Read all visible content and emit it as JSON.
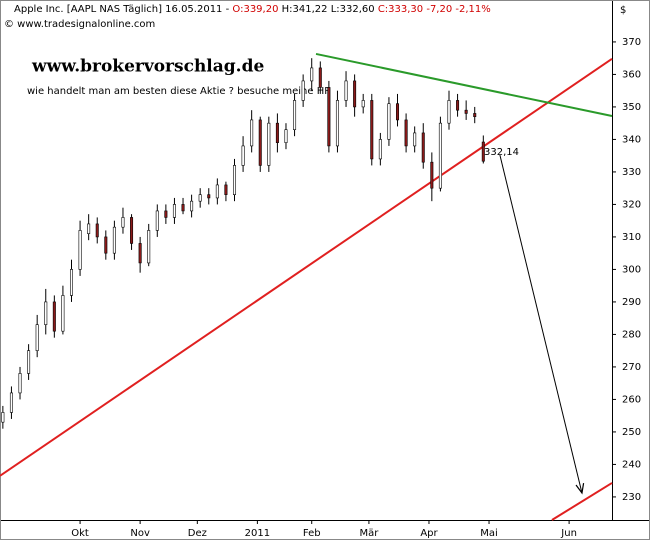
{
  "chart_data": {
    "type": "candlestick",
    "header": {
      "name": "Apple Inc. [AAPL NAS  Täglich] 16.05.2011 - ",
      "open": "O:339,20",
      "highlow": " H:341,22 L:332,60 ",
      "close": "C:333,30 -7,20 -2,11%"
    },
    "source": "© www.tradesignalonline.com",
    "watermark": "www.brokervorschlag.de",
    "subtitle": "wie handelt man am besten diese Aktie  ? besuche meine HP",
    "y_unit": "$",
    "up_color": "#ffffff",
    "down_color": "#8b1a1a",
    "x": [
      1,
      4,
      7,
      10,
      13,
      16,
      19,
      22,
      25,
      28,
      31,
      34,
      37,
      40,
      43,
      46,
      49,
      52,
      55,
      58,
      61,
      64,
      67,
      70,
      73,
      76,
      79,
      82,
      85,
      88,
      91,
      94,
      97,
      100,
      103,
      106,
      109,
      112,
      115,
      118,
      121,
      124,
      127,
      130,
      133,
      136,
      139,
      142,
      145,
      148,
      151,
      154,
      157,
      160,
      163,
      166,
      169
    ],
    "open": [
      253,
      256,
      262,
      268,
      275,
      283,
      290,
      281,
      292,
      300,
      311,
      314,
      310,
      305,
      313,
      316,
      308,
      302,
      312,
      318,
      316,
      320,
      318,
      321,
      323,
      322,
      326,
      323,
      332,
      338,
      346,
      332,
      345,
      339,
      343,
      352,
      358,
      362,
      356,
      338,
      352,
      358,
      350,
      352,
      334,
      340,
      351,
      346,
      338,
      342,
      333,
      325,
      345,
      352,
      349,
      348,
      339.2
    ],
    "high": [
      258,
      264,
      270,
      277,
      286,
      294,
      292,
      295,
      303,
      315,
      317,
      316,
      312,
      315,
      319,
      317,
      310,
      314,
      320,
      320,
      322,
      322,
      323,
      325,
      325,
      328,
      327,
      334,
      341,
      349,
      347,
      347,
      348,
      345,
      354,
      360,
      365,
      364,
      358,
      355,
      361,
      360,
      354,
      354,
      342,
      353,
      354,
      348,
      344,
      345,
      336,
      347,
      355,
      354,
      352,
      350,
      341.22
    ],
    "low": [
      251,
      254,
      260,
      266,
      273,
      280,
      279,
      280,
      290,
      298,
      309,
      308,
      303,
      303,
      311,
      306,
      299,
      301,
      310,
      314,
      314,
      317,
      316,
      319,
      320,
      320,
      321,
      321,
      330,
      336,
      330,
      330,
      336,
      337,
      341,
      350,
      355,
      354,
      336,
      336,
      350,
      347,
      348,
      332,
      332,
      338,
      344,
      336,
      336,
      331,
      321,
      324,
      343,
      347,
      346,
      345,
      332.6
    ],
    "close": [
      256,
      262,
      268,
      275,
      283,
      290,
      281,
      292,
      300,
      312,
      314,
      310,
      305,
      313,
      316,
      308,
      302,
      312,
      318,
      316,
      320,
      318,
      321,
      323,
      322,
      326,
      323,
      332,
      338,
      346,
      332,
      345,
      339,
      343,
      352,
      358,
      362,
      356,
      338,
      352,
      358,
      350,
      352,
      334,
      340,
      351,
      346,
      338,
      342,
      333,
      325,
      345,
      352,
      349,
      348,
      347,
      333.3
    ],
    "lines": [
      {
        "color": "#e02020",
        "x": [
          0,
          214
        ],
        "y": [
          236.5,
          364.8
        ]
      },
      {
        "color": "#e02020",
        "x": [
          193,
          214
        ],
        "y": [
          222.9,
          234.3
        ]
      },
      {
        "color": "#2a9a2a",
        "x": [
          110.5,
          214
        ],
        "y": [
          366.3,
          347.2
        ]
      },
      {
        "color": "#000000",
        "x": [
          174.8,
          203.5
        ],
        "y": [
          335.2,
          231.2
        ]
      }
    ],
    "annotation": "332,14",
    "xlim": [
      0,
      214
    ],
    "ylim": [
      222.9,
      382.9
    ],
    "xticks": [
      {
        "value": 28,
        "label": "Okt"
      },
      {
        "value": 49,
        "label": "Nov"
      },
      {
        "value": 69,
        "label": "Dez"
      },
      {
        "value": 90,
        "label": "2011"
      },
      {
        "value": 109,
        "label": "Feb"
      },
      {
        "value": 129,
        "label": "Mär"
      },
      {
        "value": 150,
        "label": "Apr"
      },
      {
        "value": 171,
        "label": "Mai"
      },
      {
        "value": 199,
        "label": "Jun"
      }
    ],
    "yticks": [
      230,
      240,
      250,
      260,
      270,
      280,
      290,
      300,
      310,
      320,
      330,
      340,
      350,
      360,
      370
    ]
  }
}
